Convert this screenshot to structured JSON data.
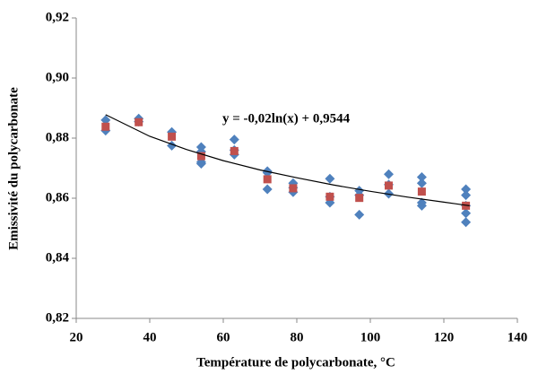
{
  "chart_data": {
    "type": "scatter",
    "x_label": "Température de polycarbonate, °C",
    "y_label": "Emissivité du polycarbonate",
    "annotation": "y = -0,02ln(x) + 0,9544",
    "xlim": [
      20,
      140
    ],
    "xticks": [
      20,
      40,
      60,
      80,
      100,
      120,
      140
    ],
    "ylim": [
      0.82,
      0.92
    ],
    "yticks": [
      {
        "value": 0.82,
        "label": "0,82"
      },
      {
        "value": 0.84,
        "label": "0,84"
      },
      {
        "value": 0.86,
        "label": "0,86"
      },
      {
        "value": 0.88,
        "label": "0,88"
      },
      {
        "value": 0.9,
        "label": "0,90"
      },
      {
        "value": 0.92,
        "label": "0,92"
      }
    ],
    "series": [
      {
        "color": "#4f81bd",
        "marker": "diamond",
        "x": [
          28,
          28,
          37,
          37,
          46,
          46,
          54,
          54,
          54,
          54,
          63,
          63,
          63,
          72,
          72,
          72,
          79,
          79,
          79,
          89,
          89,
          89,
          97,
          97,
          97,
          105,
          105,
          105,
          114,
          114,
          114,
          114,
          126,
          126,
          126,
          126,
          126
        ],
        "values": [
          0.886,
          0.8825,
          0.8865,
          0.8855,
          0.882,
          0.8775,
          0.877,
          0.8755,
          0.8715,
          0.872,
          0.8795,
          0.8745,
          0.876,
          0.869,
          0.8685,
          0.863,
          0.865,
          0.862,
          0.8635,
          0.8665,
          0.8585,
          0.8605,
          0.8625,
          0.8545,
          0.861,
          0.868,
          0.8615,
          0.8645,
          0.867,
          0.865,
          0.8585,
          0.8575,
          0.863,
          0.861,
          0.855,
          0.852,
          0.8575
        ]
      },
      {
        "color": "#c0504d",
        "marker": "square",
        "x": [
          28,
          37,
          46,
          54,
          63,
          72,
          79,
          89,
          97,
          105,
          114,
          126
        ],
        "values": [
          0.8838,
          0.8853,
          0.8805,
          0.874,
          0.8757,
          0.8663,
          0.8633,
          0.8605,
          0.8601,
          0.8642,
          0.8622,
          0.8575
        ]
      },
      {
        "color": "#000000",
        "marker": "line",
        "x": [
          28,
          40,
          50,
          60,
          70,
          80,
          90,
          100,
          110,
          120,
          127
        ],
        "values": [
          0.8878,
          0.8806,
          0.8762,
          0.8725,
          0.8694,
          0.8668,
          0.8644,
          0.8623,
          0.8604,
          0.8587,
          0.8575
        ]
      }
    ]
  }
}
